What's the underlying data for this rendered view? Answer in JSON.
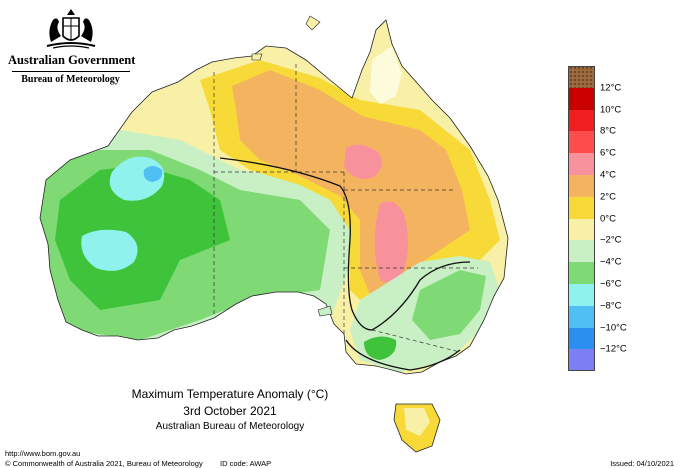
{
  "header": {
    "government": "Australian Government",
    "bureau": "Bureau of Meteorology"
  },
  "caption": {
    "title": "Maximum Temperature Anomaly (°C)",
    "date": "3rd October 2021",
    "org": "Australian Bureau of Meteorology"
  },
  "legend": {
    "bins": [
      {
        "label": "",
        "color": "#9c6a3c"
      },
      {
        "label": "12°C",
        "color": "#c80000"
      },
      {
        "label": "10°C",
        "color": "#f01e1e"
      },
      {
        "label": "8°C",
        "color": "#ff4c4c"
      },
      {
        "label": "6°C",
        "color": "#f7919b"
      },
      {
        "label": "4°C",
        "color": "#f4b45f"
      },
      {
        "label": "2°C",
        "color": "#f7da38"
      },
      {
        "label": "0°C",
        "color": "#f8f0a6"
      },
      {
        "label": "−2°C",
        "color": "#fcfbdc"
      },
      {
        "label": "−4°C",
        "color": "#c9efc4"
      },
      {
        "label": "−6°C",
        "color": "#7fd975"
      },
      {
        "label": "−8°C",
        "color": "#3fc33a"
      },
      {
        "label": "−10°C",
        "color": "#8ff2ec"
      },
      {
        "label": "−12°C",
        "color": "#50bff4"
      },
      {
        "label": "",
        "color": "#2b8ff0"
      }
    ],
    "bottom_colors": [
      "#7e7ef4",
      "#2a2af4"
    ]
  },
  "footer": {
    "url": "http://www.bom.gov.au",
    "copyright": "© Commonwealth of Australia 2021, Bureau of Meteorology",
    "id_code": "ID code: AWAP",
    "issued": "Issued: 04/10/2021"
  }
}
